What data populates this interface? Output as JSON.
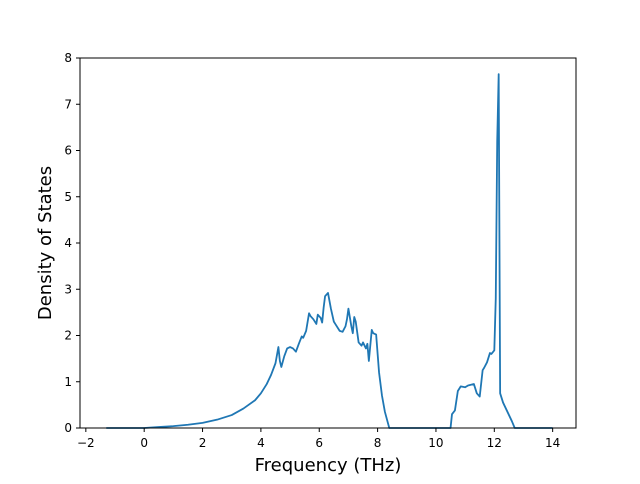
{
  "chart_data": {
    "type": "line",
    "title": "",
    "xlabel": "Frequency (THz)",
    "ylabel": "Density of States",
    "xlim": [
      -2.2,
      14.8
    ],
    "ylim": [
      0,
      8
    ],
    "xticks": [
      -2,
      0,
      2,
      4,
      6,
      8,
      10,
      12,
      14
    ],
    "yticks": [
      0,
      1,
      2,
      3,
      4,
      5,
      6,
      7,
      8
    ],
    "xtick_labels": [
      "−2",
      "0",
      "2",
      "4",
      "6",
      "8",
      "10",
      "12",
      "14"
    ],
    "ytick_labels": [
      "0",
      "1",
      "2",
      "3",
      "4",
      "5",
      "6",
      "7",
      "8"
    ],
    "grid": false,
    "legend": false,
    "colors": {
      "line": "#1f77b4",
      "axes": "#000000",
      "background": "#ffffff"
    },
    "series": [
      {
        "x": [
          -1.3,
          -1.0,
          -0.5,
          0.0,
          0.5,
          1.0,
          1.5,
          2.0,
          2.5,
          3.0,
          3.4,
          3.8,
          4.0,
          4.2,
          4.35,
          4.5,
          4.6,
          4.65,
          4.7,
          4.8,
          4.9,
          5.0,
          5.1,
          5.2,
          5.3,
          5.4,
          5.45,
          5.55,
          5.65,
          5.7,
          5.8,
          5.9,
          5.95,
          6.05,
          6.1,
          6.15,
          6.2,
          6.3,
          6.4,
          6.5,
          6.55,
          6.7,
          6.8,
          6.9,
          6.95,
          7.0,
          7.1,
          7.15,
          7.2,
          7.25,
          7.35,
          7.45,
          7.5,
          7.6,
          7.65,
          7.7,
          7.8,
          7.85,
          7.95,
          8.05,
          8.15,
          8.25,
          8.4,
          8.55,
          8.7,
          10.2,
          10.5,
          10.55,
          10.65,
          10.75,
          10.85,
          11.0,
          11.1,
          11.3,
          11.4,
          11.5,
          11.6,
          11.65,
          11.75,
          11.85,
          11.9,
          12.0,
          12.05,
          12.1,
          12.15,
          12.2,
          12.3,
          12.45,
          12.6,
          12.7,
          13.0,
          14.0
        ],
        "y": [
          0.0,
          0.0,
          0.0,
          0.0,
          0.02,
          0.04,
          0.07,
          0.11,
          0.18,
          0.28,
          0.42,
          0.6,
          0.75,
          0.95,
          1.15,
          1.4,
          1.75,
          1.45,
          1.32,
          1.55,
          1.72,
          1.75,
          1.72,
          1.65,
          1.82,
          1.98,
          1.95,
          2.1,
          2.48,
          2.42,
          2.35,
          2.25,
          2.45,
          2.38,
          2.28,
          2.6,
          2.85,
          2.92,
          2.58,
          2.3,
          2.25,
          2.1,
          2.08,
          2.2,
          2.35,
          2.58,
          2.2,
          2.05,
          2.4,
          2.3,
          1.85,
          1.78,
          1.85,
          1.72,
          1.82,
          1.45,
          2.12,
          2.05,
          2.02,
          1.2,
          0.7,
          0.35,
          0.0,
          0.0,
          0.0,
          0.0,
          0.0,
          0.3,
          0.38,
          0.8,
          0.9,
          0.88,
          0.92,
          0.95,
          0.75,
          0.68,
          1.25,
          1.3,
          1.42,
          1.62,
          1.6,
          1.68,
          2.8,
          6.2,
          7.65,
          0.75,
          0.55,
          0.35,
          0.15,
          0.0,
          0.0,
          0.0
        ]
      }
    ]
  }
}
